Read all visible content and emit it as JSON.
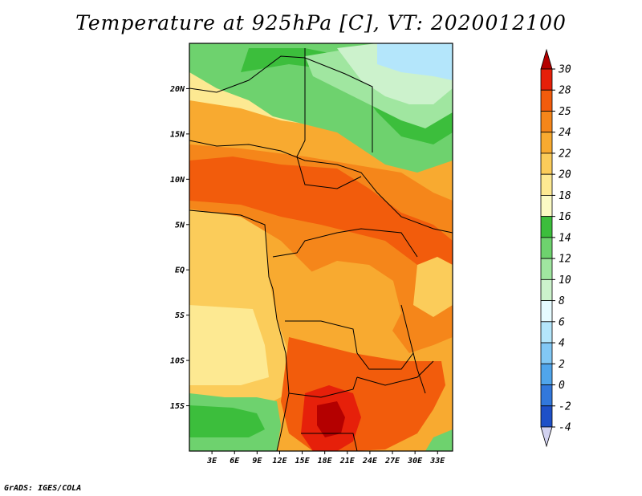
{
  "title": "Temperature at 925hPa [C], VT: 2020012100",
  "credit": "GrADS: IGES/COLA",
  "map": {
    "lat_labels": [
      "20N",
      "15N",
      "10N",
      "5N",
      "EQ",
      "5S",
      "10S",
      "15S"
    ],
    "lon_labels": [
      "3E",
      "6E",
      "9E",
      "12E",
      "15E",
      "18E",
      "21E",
      "24E",
      "27E",
      "30E",
      "33E"
    ],
    "lat_values": [
      20,
      15,
      10,
      5,
      0,
      -5,
      -10,
      -15
    ],
    "lon_values": [
      3,
      6,
      9,
      12,
      15,
      18,
      21,
      24,
      27,
      30,
      33
    ],
    "lon_range": [
      0,
      35
    ],
    "lat_range": [
      -20,
      25
    ]
  },
  "colorbar": {
    "labels": [
      "30",
      "28",
      "25",
      "24",
      "22",
      "20",
      "18",
      "16",
      "14",
      "12",
      "10",
      "8",
      "6",
      "4",
      "2",
      "0",
      "-2",
      "-4"
    ],
    "colors": [
      "#b40000",
      "#e6200a",
      "#f25c0c",
      "#f5861a",
      "#f8aa30",
      "#fbcc5a",
      "#fde992",
      "#fbfac4",
      "#3cbe3c",
      "#6ed26e",
      "#a0e6a0",
      "#ccf2cc",
      "#e6fbff",
      "#b4e6fb",
      "#82c8f5",
      "#50a5eb",
      "#3278dc",
      "#1e50c8",
      "#0a28a0",
      "#00005a"
    ]
  }
}
